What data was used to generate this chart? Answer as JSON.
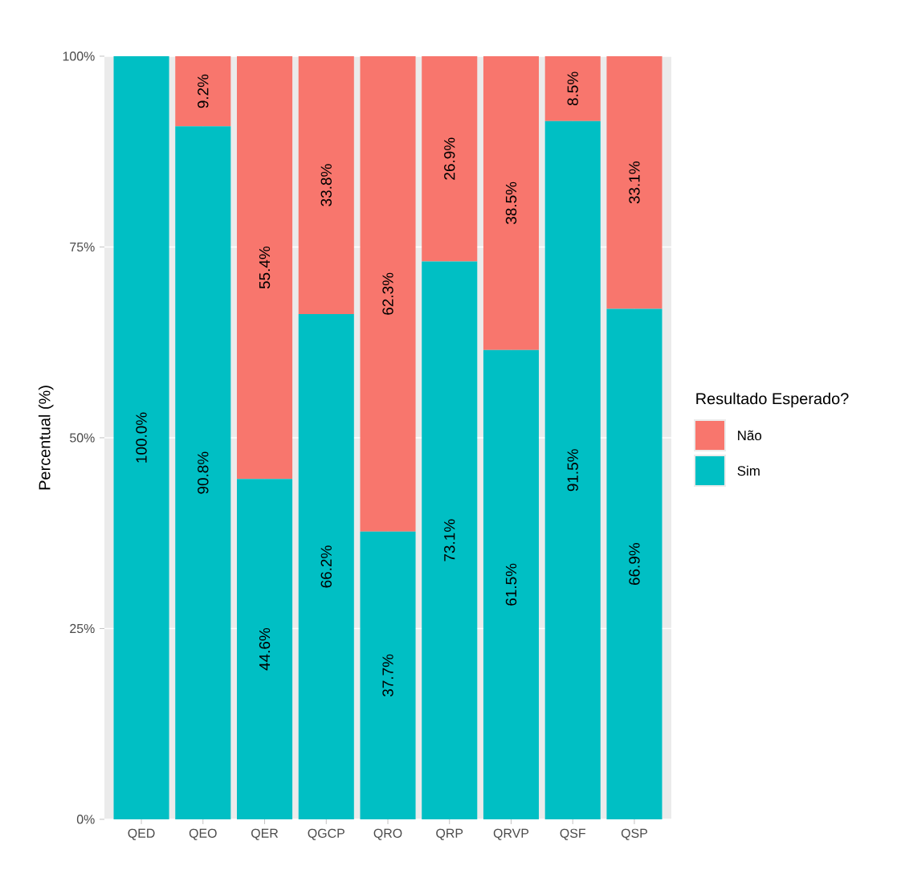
{
  "chart_data": {
    "type": "bar",
    "stacked": true,
    "ylabel": "Percentual (%)",
    "legend_title": "Resultado Esperado?",
    "legend": "right",
    "grid": true,
    "categories": [
      "QED",
      "QEO",
      "QER",
      "QGCP",
      "QRO",
      "QRP",
      "QRVP",
      "QSF",
      "QSP"
    ],
    "ylim": [
      0,
      100
    ],
    "yticks": [
      {
        "value": 0,
        "label": "0%"
      },
      {
        "value": 25,
        "label": "25%"
      },
      {
        "value": 50,
        "label": "50%"
      },
      {
        "value": 75,
        "label": "75%"
      },
      {
        "value": 100,
        "label": "100%"
      }
    ],
    "series": [
      {
        "name": "Sim",
        "color": "#00bfc4",
        "values": [
          100.0,
          90.8,
          44.6,
          66.2,
          37.7,
          73.1,
          61.5,
          91.5,
          66.9
        ],
        "value_labels": [
          "100.0%",
          "90.8%",
          "44.6%",
          "66.2%",
          "37.7%",
          "73.1%",
          "61.5%",
          "91.5%",
          "66.9%"
        ]
      },
      {
        "name": "Não",
        "color": "#f8766d",
        "values": [
          0,
          9.2,
          55.4,
          33.8,
          62.3,
          26.9,
          38.5,
          8.5,
          33.1
        ],
        "value_labels": [
          null,
          "9.2%",
          "55.4%",
          "33.8%",
          "62.3%",
          "26.9%",
          "38.5%",
          "8.5%",
          "33.1%"
        ]
      }
    ]
  }
}
